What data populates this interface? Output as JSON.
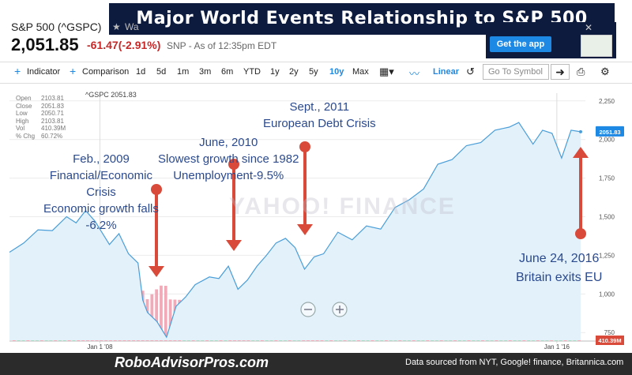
{
  "header": {
    "title": "Major World Events Relationship to S&P 500",
    "ticker": "S&P 500 (^GSPC)",
    "price": "2,051.85",
    "change": "-61.47(-2.91%)",
    "as_of": "SNP - As of 12:35pm EDT",
    "watch_label": "Wa",
    "app_button": "Get the app"
  },
  "toolbar": {
    "indicator": "Indicator",
    "comparison": "Comparison",
    "ranges": [
      "1d",
      "5d",
      "1m",
      "3m",
      "6m",
      "YTD",
      "1y",
      "2y",
      "5y",
      "10y",
      "Max"
    ],
    "active_range": "10y",
    "scale": "Linear",
    "symbol_placeholder": "Go To Symbol"
  },
  "ohlc": {
    "labels": [
      "Open",
      "Close",
      "Low",
      "High",
      "Vol",
      "% Chg"
    ],
    "values": [
      "2103.81",
      "2051.83",
      "2050.71",
      "2103.81",
      "410.39M",
      "60.72%"
    ]
  },
  "annotations": {
    "a1": [
      "Feb., 2009",
      "Financial/Economic",
      "Crisis",
      "Economic growth falls",
      "-6.2%"
    ],
    "a2": [
      "June, 2010",
      "Slowest growth since 1982",
      "Unemployment-9.5%"
    ],
    "a3": [
      "Sept., 2011",
      "European Debt Crisis"
    ],
    "a4": [
      "June 24, 2016",
      "Britain exits EU"
    ]
  },
  "watermark": "YAHOO! FINANCE",
  "footer": {
    "brand": "RoboAdvisorPros.com",
    "source": "Data sourced from NYT, Google! finance, Britannica.com"
  },
  "colors": {
    "line": "#4a9ed8",
    "area": "#e3f1fb",
    "vol_up": "#a8dcc4",
    "vol_down": "#f2aab8",
    "arrow": "#d94a3a",
    "annotation_text": "#2b4a8e",
    "title_bg": "#0d1b3e"
  },
  "chart_data": {
    "type": "line",
    "title": "^GSPC 2051.83",
    "x_tick_labels": [
      "Jan 1 '08",
      "Jan 1 '16"
    ],
    "y_ticks": [
      750,
      1000,
      1250,
      1500,
      1750,
      2000,
      2250
    ],
    "ylim": [
      700,
      2300
    ],
    "last_value_label": "2051.83",
    "volume_label": "410.39M",
    "series": [
      {
        "x": [
          "2006-06",
          "2006-09",
          "2006-12",
          "2007-03",
          "2007-06",
          "2007-08",
          "2007-10",
          "2007-12",
          "2008-03",
          "2008-05",
          "2008-07",
          "2008-09",
          "2008-10",
          "2008-11",
          "2009-01",
          "2009-03",
          "2009-05",
          "2009-07",
          "2009-09",
          "2009-12",
          "2010-02",
          "2010-04",
          "2010-06",
          "2010-08",
          "2010-10",
          "2010-12",
          "2011-02",
          "2011-04",
          "2011-06",
          "2011-08",
          "2011-10",
          "2011-12",
          "2012-03",
          "2012-06",
          "2012-09",
          "2012-12",
          "2013-03",
          "2013-06",
          "2013-09",
          "2013-12",
          "2014-03",
          "2014-06",
          "2014-09",
          "2014-12",
          "2015-03",
          "2015-05",
          "2015-08",
          "2015-10",
          "2015-12",
          "2016-02",
          "2016-04",
          "2016-06"
        ],
        "y": [
          1270,
          1330,
          1415,
          1410,
          1500,
          1460,
          1540,
          1470,
          1320,
          1390,
          1260,
          1200,
          960,
          880,
          820,
          720,
          920,
          980,
          1060,
          1110,
          1100,
          1180,
          1030,
          1090,
          1180,
          1250,
          1330,
          1360,
          1300,
          1160,
          1240,
          1260,
          1400,
          1350,
          1440,
          1420,
          1560,
          1610,
          1680,
          1840,
          1870,
          1960,
          1980,
          2060,
          2080,
          2110,
          1970,
          2060,
          2040,
          1880,
          2060,
          2050
        ]
      }
    ]
  }
}
